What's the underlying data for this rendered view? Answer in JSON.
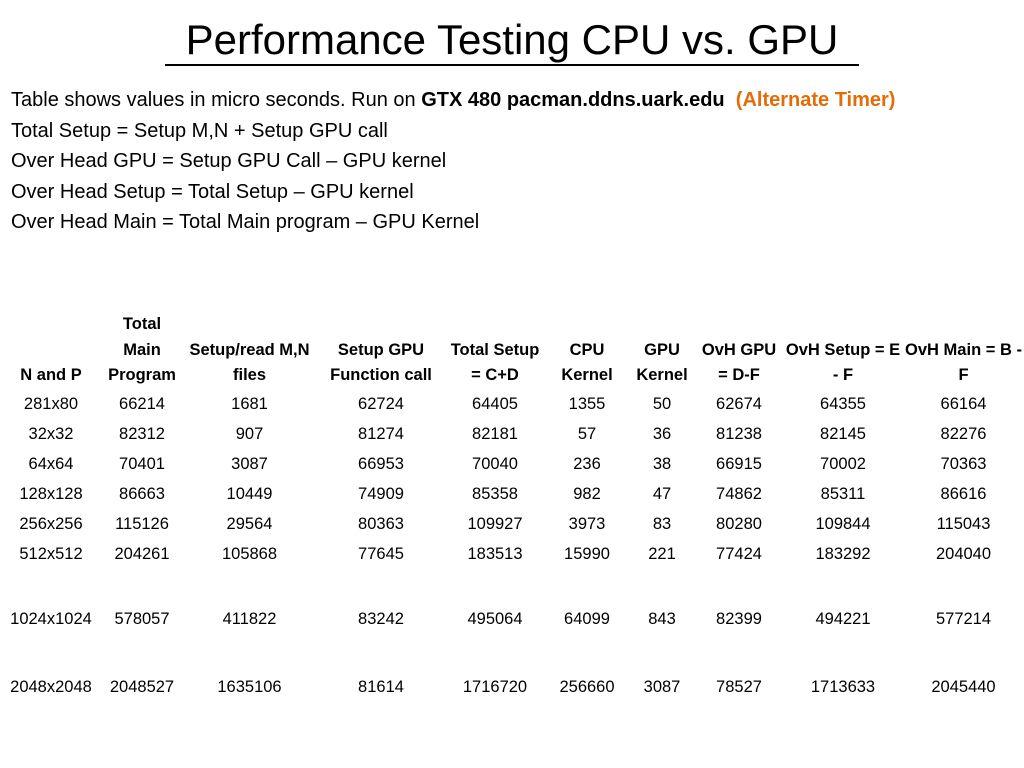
{
  "slide": {
    "title": "Performance Testing CPU vs. GPU"
  },
  "intro": {
    "line1_prefix": "Table shows values in micro seconds. Run on ",
    "line1_bold": "GTX 480 pacman.ddns.uark.edu",
    "line1_orange": "(Alternate Timer)",
    "line2": "Total Setup = Setup M,N + Setup GPU call",
    "line3": "Over Head GPU = Setup GPU Call – GPU kernel",
    "line4": "Over Head Setup = Total Setup – GPU kernel",
    "line5": "Over Head Main = Total Main program – GPU Kernel"
  },
  "accent_color": "#e36c09",
  "table": {
    "headers": [
      "N and P",
      "Total Main Program",
      "Setup/read M,N files",
      "Setup GPU Function call",
      "Total Setup = C+D",
      "CPU Kernel",
      "GPU Kernel",
      "OvH GPU = D-F",
      "OvH Setup = E - F",
      "OvH Main = B - F"
    ],
    "rows": [
      [
        "281x80",
        "66214",
        "1681",
        "62724",
        "64405",
        "1355",
        "50",
        "62674",
        "64355",
        "66164"
      ],
      [
        "32x32",
        "82312",
        "907",
        "81274",
        "82181",
        "57",
        "36",
        "81238",
        "82145",
        "82276"
      ],
      [
        "64x64",
        "70401",
        "3087",
        "66953",
        "70040",
        "236",
        "38",
        "66915",
        "70002",
        "70363"
      ],
      [
        "128x128",
        "86663",
        "10449",
        "74909",
        "85358",
        "982",
        "47",
        "74862",
        "85311",
        "86616"
      ],
      [
        "256x256",
        "115126",
        "29564",
        "80363",
        "109927",
        "3973",
        "83",
        "80280",
        "109844",
        "115043"
      ],
      [
        "512x512",
        "204261",
        "105868",
        "77645",
        "183513",
        "15990",
        "221",
        "77424",
        "183292",
        "204040"
      ],
      [
        "1024x1024",
        "578057",
        "411822",
        "83242",
        "495064",
        "64099",
        "843",
        "82399",
        "494221",
        "577214"
      ],
      [
        "2048x2048",
        "2048527",
        "1635106",
        "81614",
        "1716720",
        "256660",
        "3087",
        "78527",
        "1713633",
        "2045440"
      ]
    ]
  }
}
